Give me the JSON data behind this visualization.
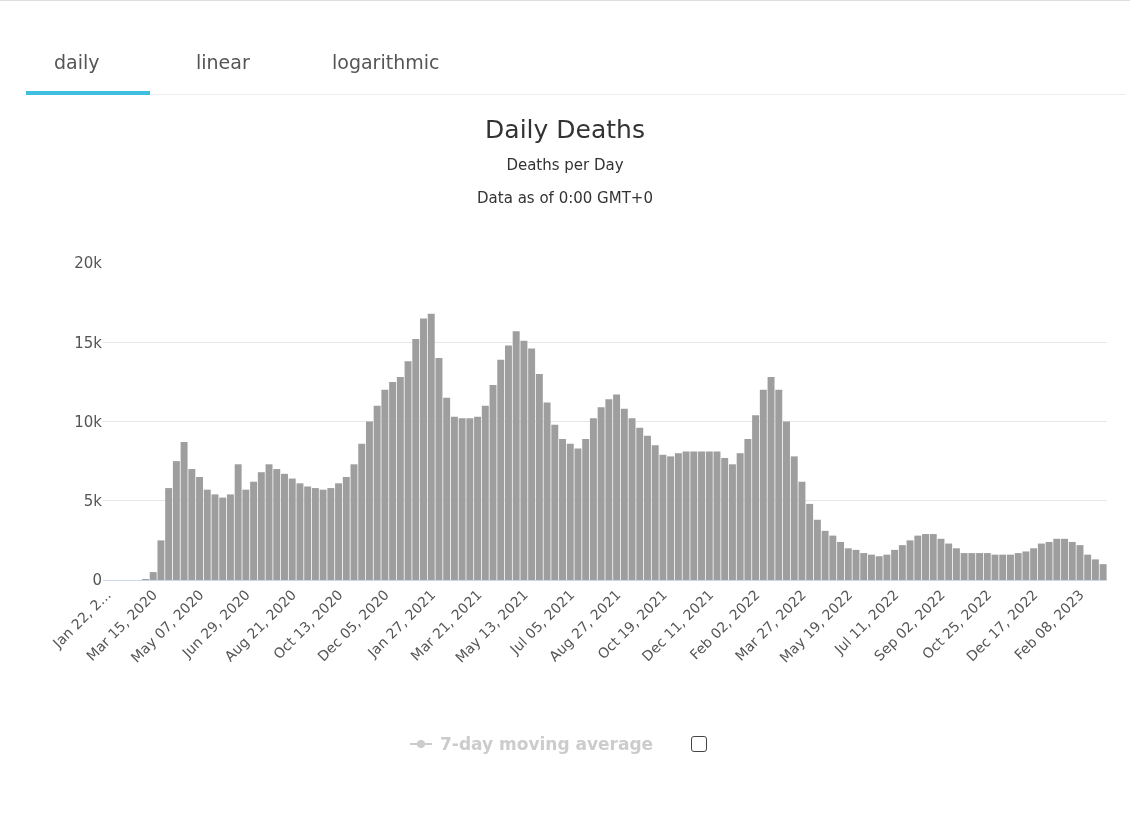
{
  "chart_data": {
    "type": "bar",
    "title": "Daily Deaths",
    "subtitle": "Deaths per Day\nData as of 0:00 GMT+0",
    "annotations": [
      "daily",
      "linear",
      "logarithmic",
      "7-day moving average"
    ],
    "categories": [
      "Jan 22, 2...",
      null,
      null,
      null,
      null,
      null,
      "Mar 15, 2020",
      null,
      null,
      null,
      null,
      null,
      "May 07, 2020",
      null,
      null,
      null,
      null,
      null,
      "Jun 29, 2020",
      null,
      null,
      null,
      null,
      null,
      "Aug 21, 2020",
      null,
      null,
      null,
      null,
      null,
      "Oct 13, 2020",
      null,
      null,
      null,
      null,
      null,
      "Dec 05, 2020",
      null,
      null,
      null,
      null,
      null,
      "Jan 27, 2021",
      null,
      null,
      null,
      null,
      null,
      "Mar 21, 2021",
      null,
      null,
      null,
      null,
      null,
      "May 13, 2021",
      null,
      null,
      null,
      null,
      null,
      "Jul 05, 2021",
      null,
      null,
      null,
      null,
      null,
      "Aug 27, 2021",
      null,
      null,
      null,
      null,
      null,
      "Oct 19, 2021",
      null,
      null,
      null,
      null,
      null,
      "Dec 11, 2021",
      null,
      null,
      null,
      null,
      null,
      "Feb 02, 2022",
      null,
      null,
      null,
      null,
      null,
      "Mar 27, 2022",
      null,
      null,
      null,
      null,
      null,
      "May 19, 2022",
      null,
      null,
      null,
      null,
      null,
      "Jul 11, 2022",
      null,
      null,
      null,
      null,
      null,
      "Sep 02, 2022",
      null,
      null,
      null,
      null,
      null,
      "Oct 25, 2022",
      null,
      null,
      null,
      null,
      null,
      "Dec 17, 2022",
      null,
      null,
      null,
      null,
      null,
      "Feb 08, 2023",
      null,
      null,
      null
    ],
    "values": [
      0,
      0,
      0,
      0,
      0,
      50,
      500,
      2500,
      5800,
      7500,
      8700,
      7000,
      6500,
      5700,
      5400,
      5200,
      5400,
      7300,
      5700,
      6200,
      6800,
      7300,
      7000,
      6700,
      6400,
      6100,
      5900,
      5800,
      5700,
      5800,
      6100,
      6500,
      7300,
      8600,
      10000,
      11000,
      12000,
      12500,
      12800,
      13800,
      15200,
      16500,
      16800,
      14000,
      11500,
      10300,
      10200,
      10200,
      10300,
      11000,
      12300,
      13900,
      14800,
      15700,
      15100,
      14600,
      13000,
      11200,
      9800,
      8900,
      8600,
      8300,
      8900,
      10200,
      10900,
      11400,
      11700,
      10800,
      10200,
      9600,
      9100,
      8500,
      7900,
      7800,
      8000,
      8100,
      8100,
      8100,
      8100,
      8100,
      7700,
      7300,
      8000,
      8900,
      10400,
      12000,
      12800,
      12000,
      10000,
      7800,
      6200,
      4800,
      3800,
      3100,
      2800,
      2400,
      2000,
      1900,
      1700,
      1600,
      1500,
      1600,
      1900,
      2200,
      2500,
      2800,
      2900,
      2900,
      2600,
      2300,
      2000,
      1700,
      1700,
      1700,
      1700,
      1600,
      1600,
      1600,
      1700,
      1800,
      2000,
      2300,
      2400,
      2600,
      2600,
      2400,
      2200,
      1600,
      1300,
      1000
    ],
    "color": "#9e9e9e",
    "ylim": [
      0,
      20000
    ],
    "yticks": [
      {
        "value": 0,
        "label": "0"
      },
      {
        "value": 5000,
        "label": "5k"
      },
      {
        "value": 10000,
        "label": "10k"
      },
      {
        "value": 15000,
        "label": "15k"
      },
      {
        "value": 20000,
        "label": "20k"
      }
    ],
    "grid": "y"
  }
}
